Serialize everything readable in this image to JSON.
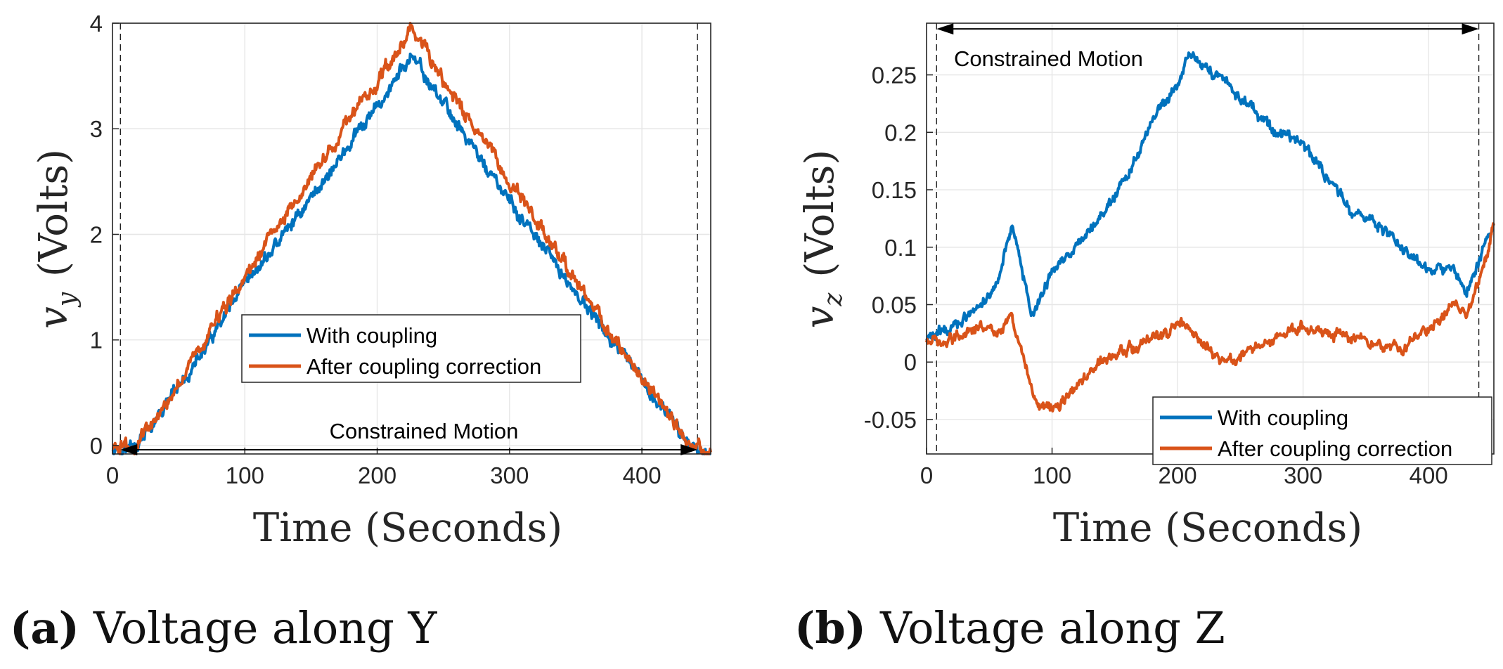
{
  "colors": {
    "series1": "#0072BD",
    "series2": "#D95319",
    "grid": "#e6e6e6",
    "axis": "#262626"
  },
  "chart_data": [
    {
      "type": "line",
      "panel": "a",
      "caption_label": "(a)",
      "caption_text": "Voltage along Y",
      "xlabel": "Time (Seconds)",
      "ylabel_symbol": "v",
      "ylabel_sub": "y",
      "ylabel_units": "(Volts)",
      "xlim": [
        0,
        452
      ],
      "ylim": [
        -0.08,
        4
      ],
      "xticks": [
        0,
        100,
        200,
        300,
        400
      ],
      "xtick_labels": [
        "0",
        "100",
        "200",
        "300",
        "400"
      ],
      "yticks": [
        0,
        1,
        2,
        3,
        4
      ],
      "ytick_labels": [
        "0",
        "1",
        "2",
        "3",
        "4"
      ],
      "grid": true,
      "vlines": [
        6,
        442
      ],
      "annotation": {
        "text": "Constrained Motion",
        "arrow_from": 6,
        "arrow_to": 442,
        "y": -0.04
      },
      "legend": {
        "position": "center-bottom",
        "entries": [
          "With coupling",
          "After coupling correction"
        ]
      },
      "series": [
        {
          "name": "With coupling",
          "x": [
            0,
            10,
            18,
            30,
            60,
            100,
            150,
            200,
            225,
            250,
            300,
            350,
            400,
            430,
            442,
            452
          ],
          "y": [
            0,
            -0.02,
            0,
            0.18,
            0.72,
            1.5,
            2.35,
            3.2,
            3.68,
            3.25,
            2.3,
            1.45,
            0.6,
            0.1,
            -0.04,
            -0.07
          ],
          "noise": 0.015
        },
        {
          "name": "After coupling correction",
          "x": [
            0,
            10,
            18,
            30,
            60,
            100,
            150,
            200,
            225,
            250,
            300,
            350,
            400,
            430,
            442,
            452
          ],
          "y": [
            0,
            -0.02,
            0,
            0.2,
            0.8,
            1.6,
            2.55,
            3.45,
            3.93,
            3.45,
            2.5,
            1.55,
            0.65,
            0.12,
            -0.04,
            -0.07
          ],
          "noise": 0.015
        }
      ]
    },
    {
      "type": "line",
      "panel": "b",
      "caption_label": "(b)",
      "caption_text": "Voltage along Z",
      "xlabel": "Time (Seconds)",
      "ylabel_symbol": "v",
      "ylabel_sub": "z",
      "ylabel_units": "(Volts)",
      "xlim": [
        0,
        452
      ],
      "ylim": [
        -0.08,
        0.295
      ],
      "xticks": [
        0,
        100,
        200,
        300,
        400
      ],
      "xtick_labels": [
        "0",
        "100",
        "200",
        "300",
        "400"
      ],
      "yticks": [
        -0.05,
        0,
        0.05,
        0.1,
        0.15,
        0.2,
        0.25
      ],
      "ytick_labels": [
        "-0.05",
        "0",
        "0.05",
        "0.1",
        "0.15",
        "0.2",
        "0.25"
      ],
      "grid": true,
      "vlines": [
        8,
        440
      ],
      "annotation": {
        "text": "Constrained Motion",
        "arrow_from": 8,
        "arrow_to": 440,
        "y": 0.29
      },
      "legend": {
        "position": "bottom-right",
        "entries": [
          "With coupling",
          "After coupling correction"
        ]
      },
      "series": [
        {
          "name": "With coupling",
          "x": [
            0,
            20,
            40,
            55,
            68,
            80,
            85,
            100,
            120,
            140,
            160,
            180,
            200,
            210,
            220,
            240,
            260,
            280,
            300,
            320,
            340,
            360,
            380,
            400,
            420,
            430,
            440,
            452
          ],
          "y": [
            0.02,
            0.03,
            0.045,
            0.065,
            0.12,
            0.06,
            0.04,
            0.08,
            0.1,
            0.13,
            0.16,
            0.21,
            0.24,
            0.27,
            0.26,
            0.24,
            0.22,
            0.2,
            0.19,
            0.16,
            0.13,
            0.12,
            0.1,
            0.08,
            0.08,
            0.06,
            0.09,
            0.12
          ],
          "noise": 0.012
        },
        {
          "name": "After coupling correction",
          "x": [
            0,
            20,
            40,
            55,
            68,
            80,
            88,
            100,
            120,
            140,
            160,
            180,
            205,
            220,
            240,
            260,
            280,
            300,
            320,
            340,
            360,
            380,
            400,
            420,
            430,
            440,
            452
          ],
          "y": [
            0.02,
            0.02,
            0.03,
            0.025,
            0.04,
            -0.01,
            -0.035,
            -0.04,
            -0.02,
            0.0,
            0.01,
            0.02,
            0.035,
            0.015,
            0.0,
            0.01,
            0.02,
            0.03,
            0.025,
            0.02,
            0.015,
            0.01,
            0.03,
            0.05,
            0.04,
            0.07,
            0.12
          ],
          "noise": 0.012
        }
      ]
    }
  ]
}
